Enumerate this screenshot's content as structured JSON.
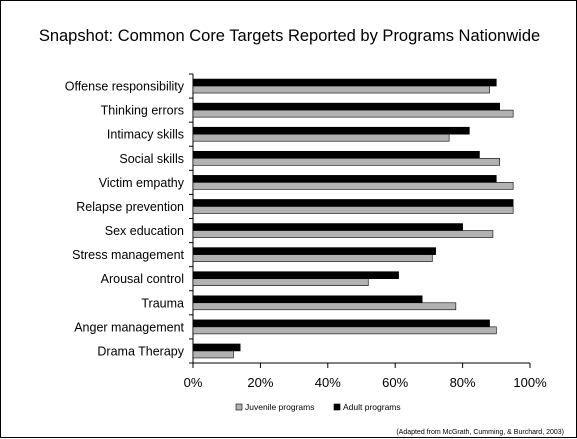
{
  "slide": {
    "title": "Snapshot: Common Core Targets Reported by Programs Nationwide",
    "source": "(Adapted from McGrath, Cumming, & Burchard, 2003)"
  },
  "chart_data": {
    "type": "bar",
    "orientation": "horizontal",
    "title": "Snapshot: Common Core Targets Reported by Programs Nationwide",
    "xlabel": "",
    "ylabel": "",
    "xlim": [
      0,
      100
    ],
    "x_ticks": [
      "0%",
      "20%",
      "40%",
      "60%",
      "80%",
      "100%"
    ],
    "grid": false,
    "legend_position": "bottom",
    "categories": [
      "Offense responsibility",
      "Thinking errors",
      "Intimacy skills",
      "Social skills",
      "Victim empathy",
      "Relapse prevention",
      "Sex education",
      "Stress management",
      "Arousal control",
      "Trauma",
      "Anger management",
      "Drama Therapy"
    ],
    "series": [
      {
        "name": "Juvenile programs",
        "color": "#b2b2b2",
        "values": [
          88,
          95,
          76,
          91,
          95,
          95,
          89,
          71,
          52,
          78,
          90,
          12
        ]
      },
      {
        "name": "Adult programs",
        "color": "#000000",
        "values": [
          90,
          91,
          82,
          85,
          90,
          95,
          80,
          72,
          61,
          68,
          88,
          14
        ]
      }
    ]
  }
}
